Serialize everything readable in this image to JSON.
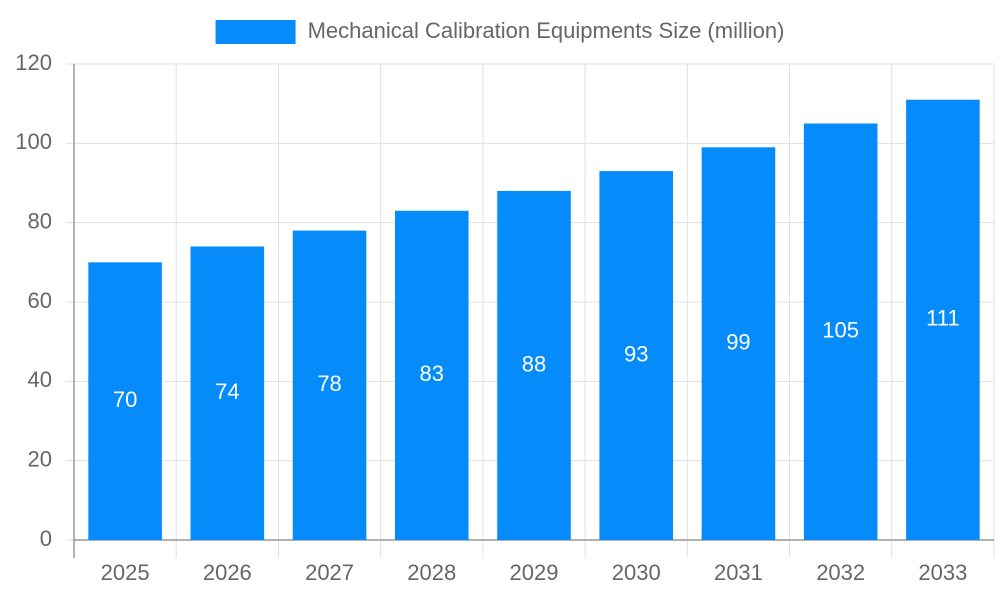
{
  "chart_data": {
    "type": "bar",
    "categories": [
      "2025",
      "2026",
      "2027",
      "2028",
      "2029",
      "2030",
      "2031",
      "2032",
      "2033"
    ],
    "series": [
      {
        "name": "Mechanical Calibration Equipments Size (million)",
        "color": "#068cfa",
        "values": [
          70,
          74,
          78,
          83,
          88,
          93,
          99,
          105,
          111
        ]
      }
    ],
    "ylim": [
      0,
      120
    ],
    "yticks": [
      0,
      20,
      40,
      60,
      80,
      100,
      120
    ],
    "grid": true,
    "legend": "top"
  }
}
